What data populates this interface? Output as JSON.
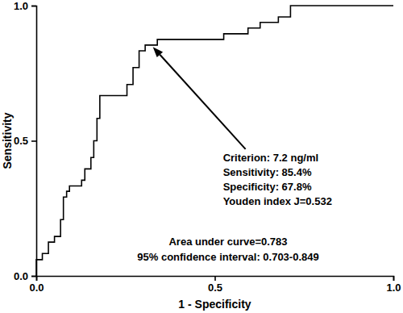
{
  "chart_data": {
    "type": "line",
    "x": [
      0,
      0,
      0.017,
      0.017,
      0.034,
      0.034,
      0.051,
      0.051,
      0.068,
      0.068,
      0.076,
      0.076,
      0.085,
      0.085,
      0.093,
      0.093,
      0.127,
      0.127,
      0.136,
      0.136,
      0.153,
      0.153,
      0.161,
      0.161,
      0.17,
      0.17,
      0.178,
      0.178,
      0.254,
      0.254,
      0.271,
      0.271,
      0.288,
      0.288,
      0.305,
      0.305,
      0.339,
      0.339,
      0.525,
      0.525,
      0.593,
      0.593,
      0.627,
      0.627,
      0.678,
      0.678,
      0.712,
      0.712,
      1.0
    ],
    "values": [
      0,
      0.06,
      0.06,
      0.083,
      0.083,
      0.125,
      0.125,
      0.146,
      0.146,
      0.208,
      0.208,
      0.292,
      0.292,
      0.313,
      0.313,
      0.333,
      0.333,
      0.354,
      0.354,
      0.396,
      0.396,
      0.438,
      0.438,
      0.5,
      0.5,
      0.583,
      0.583,
      0.667,
      0.667,
      0.708,
      0.708,
      0.771,
      0.771,
      0.833,
      0.833,
      0.854,
      0.854,
      0.875,
      0.875,
      0.896,
      0.896,
      0.917,
      0.917,
      0.938,
      0.938,
      0.958,
      0.958,
      1.0,
      1.0
    ],
    "color": "#000000",
    "xlim": [
      0,
      1
    ],
    "ylim": [
      0,
      1
    ],
    "xticks": [
      {
        "value": 0,
        "label": "0.0"
      },
      {
        "value": 0.5,
        "label": "0.5"
      },
      {
        "value": 1,
        "label": "1.0"
      }
    ],
    "yticks": [
      {
        "value": 0,
        "label": "0.0"
      },
      {
        "value": 0.5,
        "label": "0.5"
      },
      {
        "value": 1,
        "label": "1.0"
      }
    ],
    "x_label": "1 - Specificity",
    "y_label": "Sensitivity",
    "grid": false,
    "annotations": [
      {
        "lines": [
          "Criterion: 7.2 ng/ml",
          "Sensitivity: 85.4%",
          "Specificity: 67.8%",
          "Youden index J=0.532"
        ],
        "x": 0.322,
        "y": 0.854
      },
      {
        "lines": [
          "Area under curve=0.783",
          "95% confidence interval: 0.703-0.849"
        ]
      }
    ]
  }
}
